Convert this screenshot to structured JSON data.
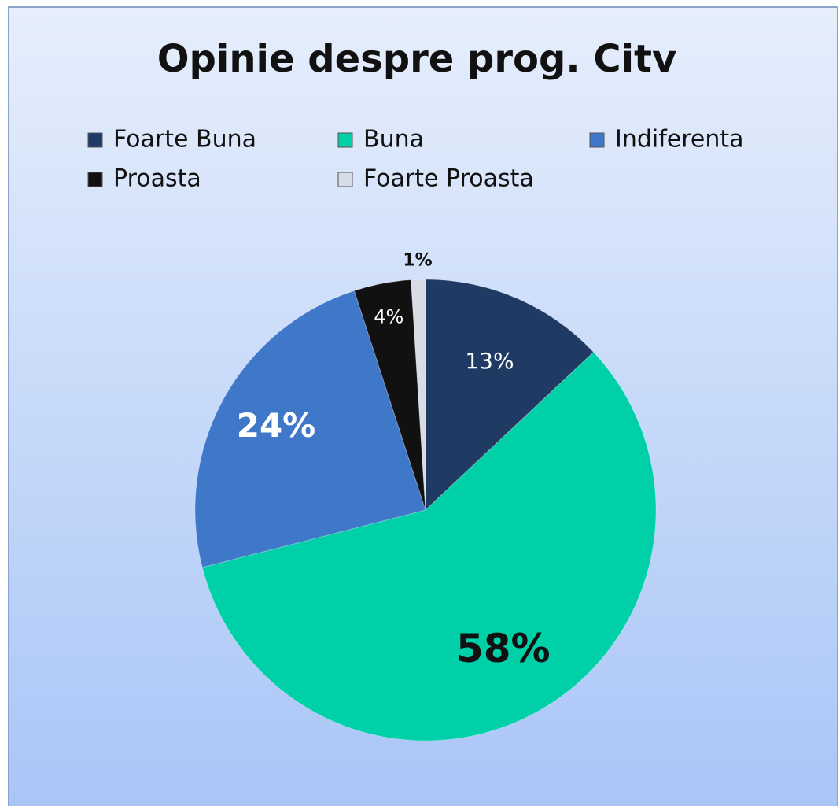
{
  "chart_data": {
    "type": "pie",
    "title": "Opinie despre prog. Citv",
    "categories": [
      "Foarte Buna",
      "Buna",
      "Indiferenta",
      "Proasta",
      "Foarte Proasta"
    ],
    "values": [
      13,
      58,
      24,
      4,
      1
    ],
    "value_labels": [
      "13%",
      "58%",
      "24%",
      "4%",
      "1%"
    ],
    "colors": [
      "#1f3a63",
      "#00d0a8",
      "#3f78c8",
      "#111111",
      "#d8dce6"
    ],
    "legend": "top"
  }
}
